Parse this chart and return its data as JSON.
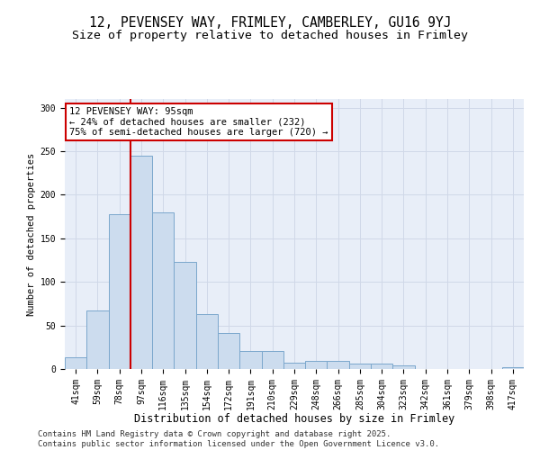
{
  "title1": "12, PEVENSEY WAY, FRIMLEY, CAMBERLEY, GU16 9YJ",
  "title2": "Size of property relative to detached houses in Frimley",
  "xlabel": "Distribution of detached houses by size in Frimley",
  "ylabel": "Number of detached properties",
  "categories": [
    "41sqm",
    "59sqm",
    "78sqm",
    "97sqm",
    "116sqm",
    "135sqm",
    "154sqm",
    "172sqm",
    "191sqm",
    "210sqm",
    "229sqm",
    "248sqm",
    "266sqm",
    "285sqm",
    "304sqm",
    "323sqm",
    "342sqm",
    "361sqm",
    "379sqm",
    "398sqm",
    "417sqm"
  ],
  "values": [
    13,
    67,
    178,
    245,
    180,
    123,
    63,
    41,
    21,
    21,
    7,
    9,
    9,
    6,
    6,
    4,
    0,
    0,
    0,
    0,
    2
  ],
  "bar_color": "#ccdcee",
  "bar_edge_color": "#7ba7cc",
  "vline_color": "#cc0000",
  "annotation_title": "12 PEVENSEY WAY: 95sqm",
  "annotation_line1": "← 24% of detached houses are smaller (232)",
  "annotation_line2": "75% of semi-detached houses are larger (720) →",
  "annotation_box_color": "#ffffff",
  "annotation_box_edge": "#cc0000",
  "ylim": [
    0,
    310
  ],
  "yticks": [
    0,
    50,
    100,
    150,
    200,
    250,
    300
  ],
  "grid_color": "#d0d8e8",
  "bg_color": "#e8eef8",
  "footer1": "Contains HM Land Registry data © Crown copyright and database right 2025.",
  "footer2": "Contains public sector information licensed under the Open Government Licence v3.0.",
  "title1_fontsize": 10.5,
  "title2_fontsize": 9.5,
  "xlabel_fontsize": 8.5,
  "ylabel_fontsize": 7.5,
  "tick_fontsize": 7,
  "footer_fontsize": 6.5,
  "annotation_fontsize": 7.5
}
